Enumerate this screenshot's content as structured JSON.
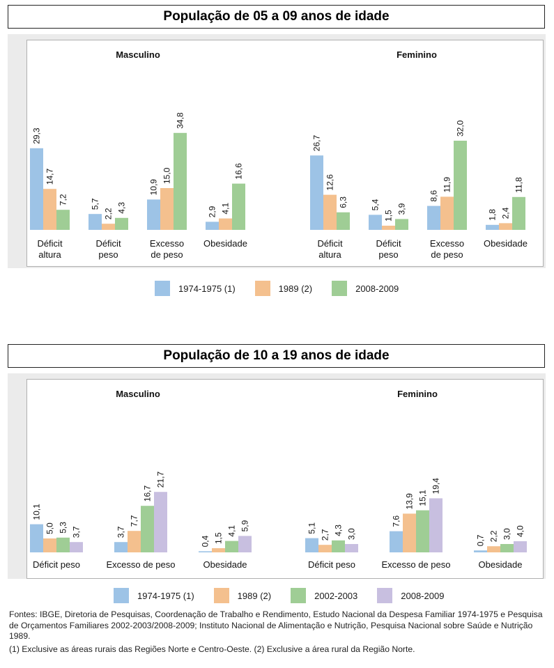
{
  "chart_data": [
    {
      "type": "bar",
      "title": "População de 05 a 09 anos de idade",
      "groups": [
        "Masculino",
        "Feminino"
      ],
      "categories": [
        [
          "Déficit",
          "altura"
        ],
        [
          "Déficit",
          "peso"
        ],
        [
          "Excesso",
          "de peso"
        ],
        [
          "Obesidade"
        ]
      ],
      "series": [
        {
          "name": "1974-1975 (1)",
          "color": "#9dc3e6",
          "values": {
            "Masculino": [
              29.3,
              5.7,
              10.9,
              2.9
            ],
            "Feminino": [
              26.7,
              5.4,
              8.6,
              1.8
            ]
          }
        },
        {
          "name": "1989 (2)",
          "color": "#f4c08e",
          "values": {
            "Masculino": [
              14.7,
              2.2,
              15.0,
              4.1
            ],
            "Feminino": [
              12.6,
              1.5,
              11.9,
              2.4
            ]
          }
        },
        {
          "name": "2008-2009",
          "color": "#9fcd95",
          "values": {
            "Masculino": [
              7.2,
              4.3,
              34.8,
              16.6
            ],
            "Feminino": [
              6.3,
              3.9,
              32.0,
              11.8
            ]
          }
        }
      ],
      "value_labels": {
        "Masculino": [
          [
            "29,3",
            "14,7",
            "7,2"
          ],
          [
            "5,7",
            "2,2",
            "4,3"
          ],
          [
            "10,9",
            "15,0",
            "34,8"
          ],
          [
            "2,9",
            "4,1",
            "16,6"
          ]
        ],
        "Feminino": [
          [
            "26,7",
            "12,6",
            "6,3"
          ],
          [
            "5,4",
            "1,5",
            "3,9"
          ],
          [
            "8,6",
            "11,9",
            "32,0"
          ],
          [
            "1,8",
            "2,4",
            "11,8"
          ]
        ]
      },
      "xlabel": "",
      "ylabel": "",
      "ylim": [
        0,
        40
      ]
    },
    {
      "type": "bar",
      "title": "População de 10 a 19 anos de idade",
      "groups": [
        "Masculino",
        "Feminino"
      ],
      "categories": [
        [
          "Déficit peso"
        ],
        [
          "Excesso de peso"
        ],
        [
          "Obesidade"
        ]
      ],
      "series": [
        {
          "name": "1974-1975 (1)",
          "color": "#9dc3e6",
          "values": {
            "Masculino": [
              10.1,
              3.7,
              0.4
            ],
            "Feminino": [
              5.1,
              7.6,
              0.7
            ]
          }
        },
        {
          "name": "1989 (2)",
          "color": "#f4c08e",
          "values": {
            "Masculino": [
              5.0,
              7.7,
              1.5
            ],
            "Feminino": [
              2.7,
              13.9,
              2.2
            ]
          }
        },
        {
          "name": "2002-2003",
          "color": "#9fcd95",
          "values": {
            "Masculino": [
              5.3,
              16.7,
              4.1
            ],
            "Feminino": [
              4.3,
              15.1,
              3.0
            ]
          }
        },
        {
          "name": "2008-2009",
          "color": "#c8bfe0",
          "values": {
            "Masculino": [
              3.7,
              21.7,
              5.9
            ],
            "Feminino": [
              3.0,
              19.4,
              4.0
            ]
          }
        }
      ],
      "value_labels": {
        "Masculino": [
          [
            "10,1",
            "5,0",
            "5,3",
            "3,7"
          ],
          [
            "3,7",
            "7,7",
            "16,7",
            "21,7"
          ],
          [
            "0,4",
            "1,5",
            "4,1",
            "5,9"
          ]
        ],
        "Feminino": [
          [
            "5,1",
            "2,7",
            "4,3",
            "3,0"
          ],
          [
            "7,6",
            "13,9",
            "15,1",
            "19,4"
          ],
          [
            "0,7",
            "2,2",
            "3,0",
            "4,0"
          ]
        ]
      },
      "xlabel": "",
      "ylabel": "",
      "ylim": [
        0,
        25
      ]
    }
  ],
  "notes": {
    "sources": "Fontes: IBGE, Diretoria de Pesquisas, Coordenação de Trabalho e Rendimento, Estudo Nacional da Despesa Familiar 1974-1975 e Pesquisa de Orçamentos Familiares 2002-2003/2008-2009; Instituto Nacional de Alimentação e Nutrição, Pesquisa Nacional sobre Saúde e Nutrição 1989.",
    "footnotes": "(1) Exclusive as áreas rurais das Regiões Norte e Centro-Oeste. (2) Exclusive a área rural da Região Norte."
  }
}
